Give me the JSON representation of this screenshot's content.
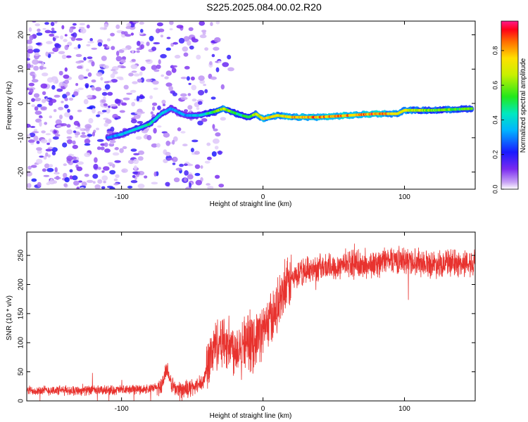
{
  "figure": {
    "title": "S225.2025.084.00.02.R20"
  },
  "chart_data": [
    {
      "type": "heatmap",
      "xlabel": "Height of straight line (km)",
      "ylabel": "Frequency (Hz)",
      "xlim": [
        -167,
        150
      ],
      "ylim": [
        -25,
        24
      ],
      "xticks": [
        -100,
        0,
        100
      ],
      "yticks": [
        -20,
        -10,
        0,
        10,
        20
      ],
      "colorbar": {
        "label": "Normalized spectral amplitude",
        "range": [
          0,
          0.97
        ],
        "ticks": [
          0.0,
          0.2,
          0.4,
          0.6,
          0.8
        ]
      },
      "ridge": {
        "x": [
          -110,
          -100,
          -90,
          -80,
          -72,
          -65,
          -55,
          -45,
          -35,
          -28,
          -22,
          -15,
          -10,
          -5,
          0,
          5,
          10,
          20,
          40,
          60,
          80,
          95,
          100,
          120,
          148
        ],
        "freq": [
          -10,
          -9,
          -7.5,
          -6,
          -3,
          -1.5,
          -3.5,
          -3.5,
          -2.5,
          -1.5,
          -2.5,
          -3.5,
          -4,
          -3,
          -4.5,
          -4,
          -3.5,
          -4,
          -4,
          -3.5,
          -3,
          -3,
          -2,
          -2,
          -1.5
        ],
        "amplitude": [
          0.3,
          0.4,
          0.45,
          0.5,
          0.45,
          0.35,
          0.35,
          0.4,
          0.55,
          0.75,
          0.6,
          0.5,
          0.6,
          0.7,
          0.85,
          0.8,
          0.75,
          0.85,
          0.9,
          0.9,
          0.95,
          0.8,
          0.75,
          0.65,
          0.6
        ]
      }
    },
    {
      "type": "line",
      "xlabel": "Height of straight line (km)",
      "ylabel": "SNR (10 * v/v)",
      "xlim": [
        -167,
        150
      ],
      "ylim": [
        0,
        290
      ],
      "xticks": [
        -100,
        0,
        100
      ],
      "yticks": [
        0,
        50,
        100,
        150,
        200,
        250
      ],
      "color": "#e8322e",
      "series": [
        {
          "x": [
            -167,
            -150,
            -130,
            -110,
            -90,
            -80,
            -72,
            -68,
            -66,
            -62,
            -55,
            -48,
            -42,
            -40,
            -35,
            -30,
            -25,
            -20,
            -15,
            -12,
            -8,
            -5,
            0,
            5,
            10,
            15,
            20,
            25,
            30,
            40,
            50,
            60,
            70,
            80,
            90,
            100,
            110,
            120,
            130,
            140,
            150
          ],
          "y": [
            18,
            18,
            18,
            18,
            20,
            20,
            25,
            55,
            35,
            20,
            20,
            25,
            30,
            60,
            90,
            105,
            100,
            90,
            100,
            105,
            95,
            110,
            120,
            140,
            160,
            185,
            210,
            215,
            225,
            230,
            230,
            238,
            232,
            235,
            245,
            240,
            240,
            235,
            238,
            235,
            240
          ]
        }
      ]
    }
  ]
}
